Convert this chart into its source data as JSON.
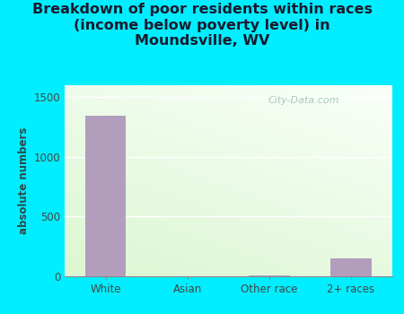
{
  "title": "Breakdown of poor residents within races\n(income below poverty level) in\nMoundsville, WV",
  "categories": [
    "White",
    "Asian",
    "Other race",
    "2+ races"
  ],
  "values": [
    1340,
    0,
    10,
    150
  ],
  "bar_color": "#b39dbd",
  "ylabel": "absolute numbers",
  "ylim": [
    0,
    1600
  ],
  "yticks": [
    0,
    500,
    1000,
    1500
  ],
  "outer_background": "#00eeff",
  "title_color": "#1a1a2e",
  "axis_label_color": "#2d4a4a",
  "tick_label_color": "#444444",
  "watermark": "City-Data.com",
  "title_fontsize": 11.5,
  "bar_width": 0.5
}
